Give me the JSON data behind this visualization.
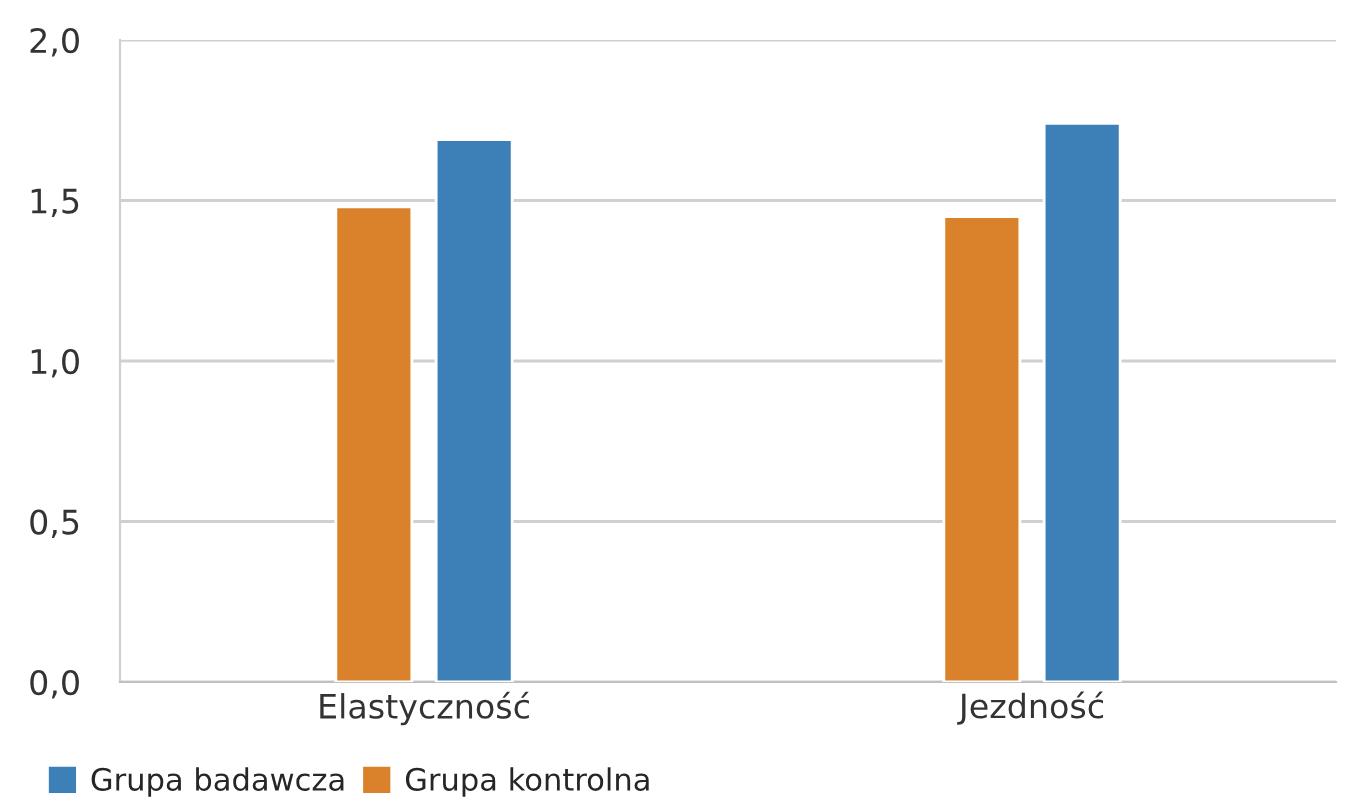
{
  "chart_data": {
    "type": "bar",
    "categories": [
      "Elastyczność",
      "Jezdność"
    ],
    "series": [
      {
        "name": "Grupa kontrolna",
        "color": "#d9822b",
        "values": [
          1.48,
          1.45
        ]
      },
      {
        "name": "Grupa badawcza",
        "color": "#3d80b8",
        "values": [
          1.69,
          1.74
        ]
      }
    ],
    "ylim": [
      0,
      2.0
    ],
    "yticks": [
      {
        "value": 0,
        "label": "0,0"
      },
      {
        "value": 0.5,
        "label": "0,5"
      },
      {
        "value": 1.0,
        "label": "1,0"
      },
      {
        "value": 1.5,
        "label": "1,5"
      },
      {
        "value": 2.0,
        "label": "2,0"
      }
    ],
    "grid": "y",
    "legend": "bottom left"
  }
}
